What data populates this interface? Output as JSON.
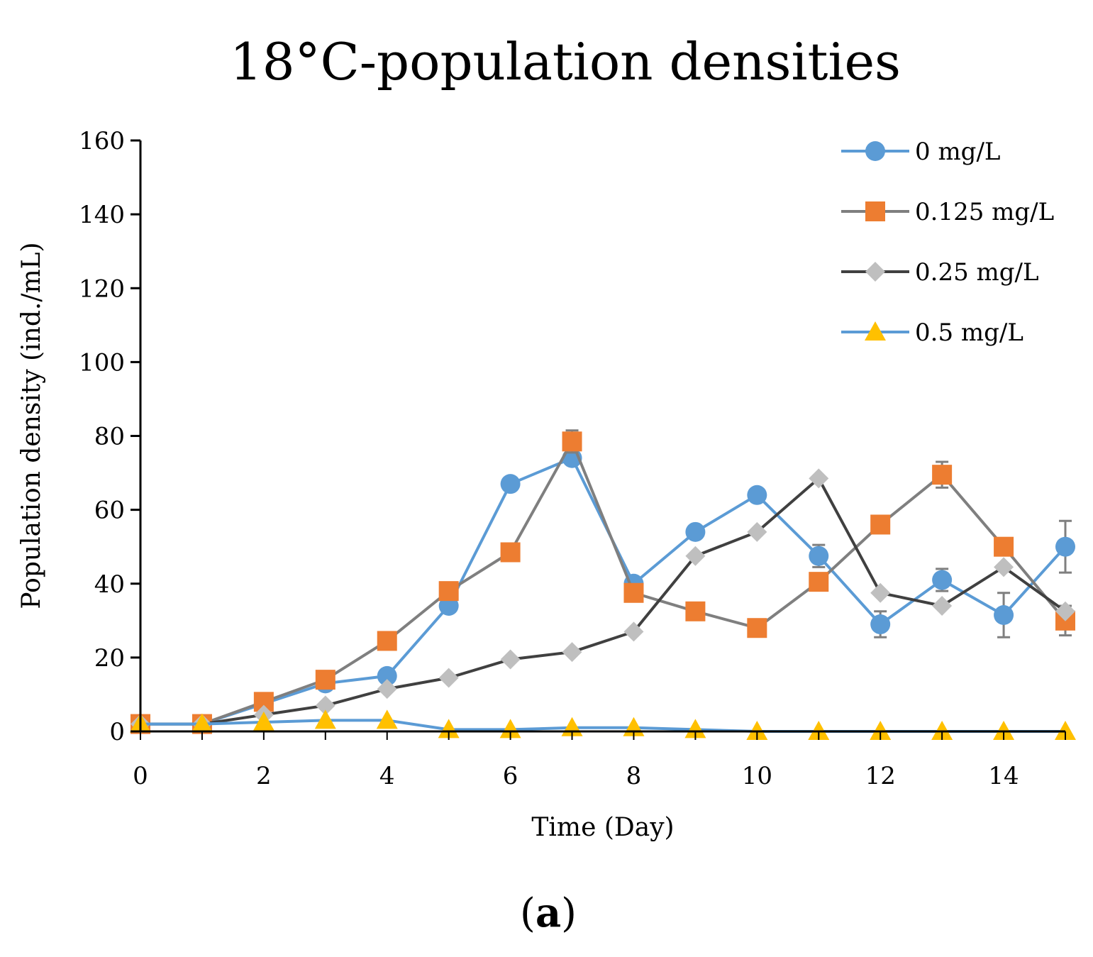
{
  "chart_data": {
    "type": "line",
    "title": "18°C-population densities",
    "xlabel": "Time (Day)",
    "ylabel": "Population density (ind./mL)",
    "caption_open": "(",
    "caption_letter": "a",
    "caption_close": ")",
    "xlim": [
      0,
      15
    ],
    "ylim": [
      0,
      160
    ],
    "xticks": [
      0,
      2,
      4,
      6,
      8,
      10,
      12,
      14
    ],
    "yticks": [
      0,
      20,
      40,
      60,
      80,
      100,
      120,
      140,
      160
    ],
    "x": [
      0,
      1,
      2,
      3,
      4,
      5,
      6,
      7,
      8,
      9,
      10,
      11,
      12,
      13,
      14,
      15
    ],
    "legend_position": "top-right",
    "series": [
      {
        "name": "0 mg/L",
        "line_color": "#5b9bd5",
        "marker": "circle",
        "marker_color": "#5b9bd5",
        "values": [
          2,
          2,
          7.5,
          13,
          15,
          34,
          67,
          74,
          40,
          54,
          64,
          47.5,
          29,
          41,
          31.5,
          50
        ],
        "errors": [
          0,
          0,
          0,
          0,
          0,
          0,
          0,
          0,
          0,
          0,
          0,
          3,
          3.5,
          3,
          6,
          7
        ]
      },
      {
        "name": "0.125 mg/L",
        "line_color": "#7f7f7f",
        "marker": "square",
        "marker_color": "#ed7d31",
        "values": [
          2,
          2,
          8,
          14,
          24.5,
          38,
          48.5,
          78.5,
          37.5,
          32.5,
          28,
          40.5,
          56,
          69.5,
          50,
          30
        ],
        "errors": [
          0,
          0,
          0,
          0,
          0,
          0,
          0,
          3,
          0,
          0,
          0,
          0,
          0,
          3.5,
          0,
          4
        ]
      },
      {
        "name": "0.25 mg/L",
        "line_color": "#404040",
        "marker": "diamond",
        "marker_color": "#bfbfbf",
        "values": [
          2,
          2,
          4.5,
          7,
          11.5,
          14.5,
          19.5,
          21.5,
          27,
          47.5,
          54,
          68.5,
          37.5,
          34,
          44.5,
          32.5
        ],
        "errors": [
          0,
          0,
          0,
          0,
          0,
          0,
          0,
          0,
          0,
          0,
          0,
          0,
          0,
          0,
          0,
          0
        ]
      },
      {
        "name": "0.5 mg/L",
        "line_color": "#5b9bd5",
        "marker": "triangle",
        "marker_color": "#ffc000",
        "values": [
          2,
          2,
          2.5,
          3,
          3,
          0.5,
          0.5,
          1,
          1,
          0.5,
          0,
          0,
          0,
          0,
          0,
          0
        ],
        "errors": [
          0,
          0,
          0,
          0,
          0,
          0,
          0,
          0,
          0,
          0,
          0,
          0,
          0,
          0,
          0,
          0
        ]
      }
    ]
  }
}
